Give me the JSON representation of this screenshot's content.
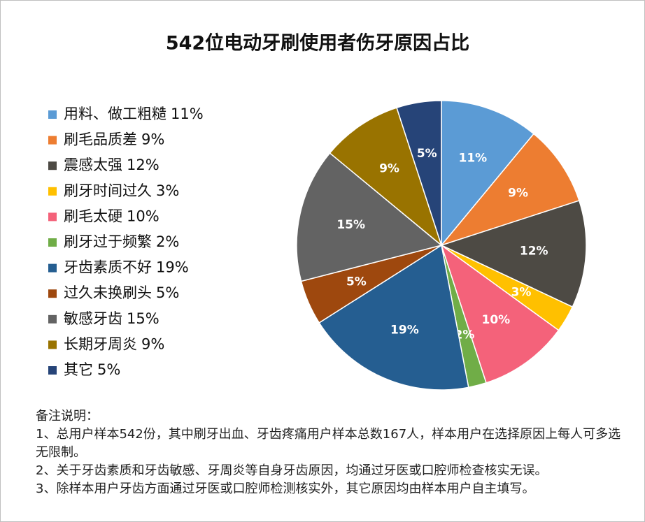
{
  "chart_data": {
    "type": "pie",
    "title": "542位电动牙刷使用者伤牙原因占比",
    "categories": [
      "用料、做工粗糙",
      "刷毛品质差",
      "震感太强",
      "刷牙时间过久",
      "刷毛太硬",
      "刷牙过于频繁",
      "牙齿素质不好",
      "过久未换刷头",
      "敏感牙齿",
      "长期牙周炎",
      "其它"
    ],
    "values": [
      11,
      9,
      12,
      3,
      10,
      2,
      19,
      5,
      15,
      9,
      5
    ],
    "value_labels": [
      "11%",
      "9%",
      "12%",
      "3%",
      "10%",
      "2%",
      "19%",
      "5%",
      "15%",
      "9%",
      "5%"
    ],
    "colors": [
      "#5b9bd5",
      "#ed7d31",
      "#4d4a44",
      "#ffc000",
      "#f4627a",
      "#70ad47",
      "#255e91",
      "#9e480e",
      "#636363",
      "#997300",
      "#264478"
    ],
    "legend": "left",
    "notes": {
      "title": "备注说明：",
      "lines": [
        "1、总用户样本542份，其中刷牙出血、牙齿疼痛用户样本总数167人，样本用户在选择原因上每人可多选无限制。",
        "2、关于牙齿素质和牙齿敏感、牙周炎等自身牙齿原因，均通过牙医或口腔师检查核实无误。",
        "3、除样本用户牙齿方面通过牙医或口腔师检测核实外，其它原因均由样本用户自主填写。"
      ]
    }
  }
}
